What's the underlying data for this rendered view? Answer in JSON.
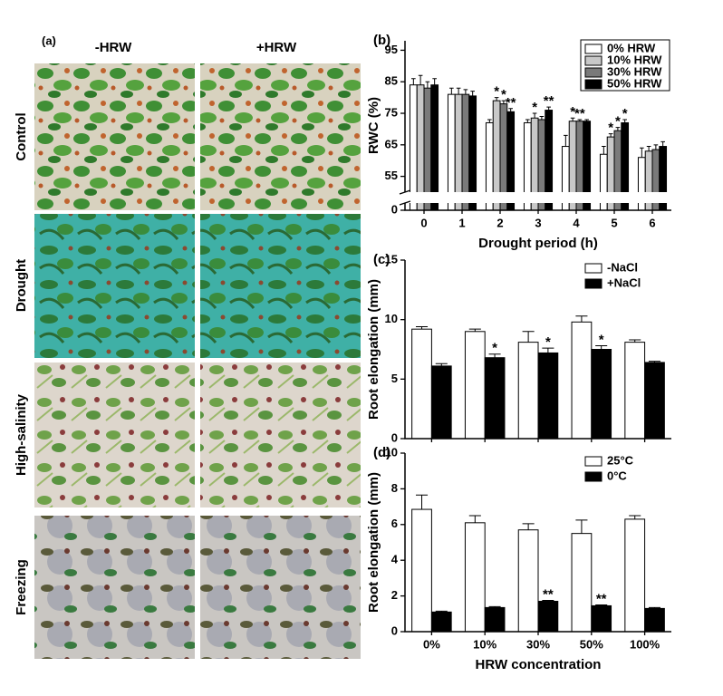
{
  "figure": {
    "panel_a": {
      "label": "(a)",
      "columns": [
        "-HRW",
        "+HRW"
      ],
      "rows": [
        "Control",
        "Drought",
        "High-salinity",
        "Freezing"
      ]
    }
  },
  "chart_data": [
    {
      "type": "bar",
      "panel_label": "(b)",
      "xlabel": "Drought period (h)",
      "ylabel": "RWC (%)",
      "categories": [
        "0",
        "1",
        "2",
        "3",
        "4",
        "5",
        "6"
      ],
      "series": [
        {
          "name": "0% HRW",
          "color": "#ffffff",
          "values": [
            84,
            81,
            72,
            72,
            64.5,
            62,
            61
          ],
          "errors": [
            2,
            2,
            1,
            1,
            3.5,
            2.5,
            3
          ],
          "annotations": [
            null,
            null,
            null,
            null,
            null,
            null,
            null
          ]
        },
        {
          "name": "10% HRW",
          "color": "#c8c8c8",
          "values": [
            84,
            81,
            79,
            73.5,
            72.5,
            67.5,
            63
          ],
          "errors": [
            3,
            2,
            1,
            1.5,
            1,
            1,
            1.5
          ],
          "annotations": [
            null,
            null,
            "*",
            "*",
            "*",
            "*",
            null
          ]
        },
        {
          "name": "30% HRW",
          "color": "#7a7a7a",
          "values": [
            83,
            81,
            78,
            73,
            72.5,
            69.5,
            63.5
          ],
          "errors": [
            2,
            1.5,
            1,
            1,
            0.5,
            1,
            1.5
          ],
          "annotations": [
            null,
            null,
            "*",
            null,
            "**",
            "*",
            null
          ]
        },
        {
          "name": "50% HRW",
          "color": "#000000",
          "values": [
            84,
            80.5,
            75.5,
            76,
            72.5,
            72,
            64.5
          ],
          "errors": [
            2,
            1.5,
            1,
            1,
            0.5,
            1,
            1.5
          ],
          "annotations": [
            null,
            null,
            "**",
            "**",
            null,
            "*",
            null
          ]
        }
      ],
      "ylim": [
        0,
        98
      ],
      "yticks": [
        0,
        55,
        65,
        75,
        85,
        95
      ],
      "axis_break": [
        2,
        50
      ],
      "legend": "upper right",
      "legend_frame": true
    },
    {
      "type": "bar",
      "panel_label": "(c)",
      "ylabel": "Root elongation (mm)",
      "categories": [
        null,
        null,
        null,
        null,
        null
      ],
      "series": [
        {
          "name": "-NaCl",
          "color": "#ffffff",
          "values": [
            9.2,
            9.0,
            8.1,
            9.8,
            8.1
          ],
          "errors": [
            0.2,
            0.2,
            0.9,
            0.5,
            0.2
          ],
          "annotations": [
            null,
            null,
            null,
            null,
            null
          ]
        },
        {
          "name": "+NaCl",
          "color": "#000000",
          "values": [
            6.1,
            6.8,
            7.2,
            7.5,
            6.4
          ],
          "errors": [
            0.2,
            0.3,
            0.4,
            0.3,
            0.1
          ],
          "annotations": [
            null,
            "*",
            "*",
            "*",
            null
          ]
        }
      ],
      "ylim": [
        0,
        15
      ],
      "yticks": [
        0,
        5,
        10,
        15
      ],
      "legend": "upper right",
      "legend_frame": false
    },
    {
      "type": "bar",
      "panel_label": "(d)",
      "xlabel": "HRW concentration",
      "ylabel": "Root elongation (mm)",
      "categories": [
        "0%",
        "10%",
        "30%",
        "50%",
        "100%"
      ],
      "series": [
        {
          "name": "25°C",
          "color": "#ffffff",
          "values": [
            6.85,
            6.1,
            5.7,
            5.5,
            6.3
          ],
          "errors": [
            0.8,
            0.4,
            0.35,
            0.75,
            0.2
          ],
          "annotations": [
            null,
            null,
            null,
            null,
            null
          ]
        },
        {
          "name": "0°C",
          "color": "#000000",
          "values": [
            1.1,
            1.35,
            1.7,
            1.45,
            1.3
          ],
          "errors": [
            0.05,
            0.05,
            0.05,
            0.05,
            0.05
          ],
          "annotations": [
            null,
            null,
            "**",
            "**",
            null
          ]
        }
      ],
      "ylim": [
        0,
        10
      ],
      "yticks": [
        0,
        2,
        4,
        6,
        8,
        10
      ],
      "legend": "upper right",
      "legend_frame": false
    }
  ]
}
